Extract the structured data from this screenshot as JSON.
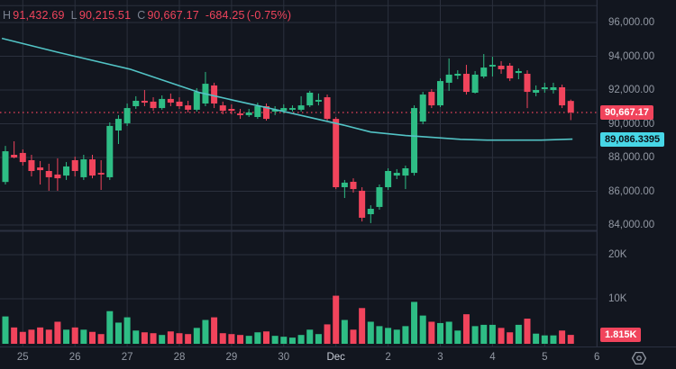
{
  "legend": {
    "h_label": "H",
    "h_value": "91,432.69",
    "l_label": "L",
    "l_value": "90,215.51",
    "c_label": "C",
    "c_value": "90,667.17",
    "change": "-684.25",
    "change_pct": "(-0.75%)"
  },
  "colors": {
    "up": "#2ebd85",
    "down": "#f1445c",
    "ma_line": "#52c3c5",
    "ma_badge_bg": "#47d6e6",
    "price_badge_bg": "#f1445c",
    "background": "#12161f",
    "grid": "#2b303d",
    "axis_text": "#9298a3",
    "legend_label": "#7b8291"
  },
  "price_axis": {
    "labels": [
      {
        "text": "96,000.00",
        "price": 96000
      },
      {
        "text": "94,000.00",
        "price": 94000
      },
      {
        "text": "92,000.00",
        "price": 92000
      },
      {
        "text": "90,000.00",
        "price": 90000
      },
      {
        "text": "88,000.00",
        "price": 88000
      },
      {
        "text": "86,000.00",
        "price": 86000
      },
      {
        "text": "84,000.00",
        "price": 84000
      }
    ],
    "last_price_badge": {
      "text": "90,667.17",
      "price": 90667.17
    },
    "ma_badge": {
      "text": "89,086.3395",
      "price": 89086.34
    }
  },
  "volume_axis": {
    "labels": [
      {
        "text": "20K",
        "value": 20000
      },
      {
        "text": "10K",
        "value": 10000
      }
    ],
    "badge": {
      "text": "1.815K",
      "value": 1815
    }
  },
  "time_axis": {
    "labels": [
      {
        "text": "25",
        "major": false
      },
      {
        "text": "26",
        "major": false
      },
      {
        "text": "27",
        "major": false
      },
      {
        "text": "28",
        "major": false
      },
      {
        "text": "29",
        "major": false
      },
      {
        "text": "30",
        "major": false
      },
      {
        "text": "Dec",
        "major": true
      },
      {
        "text": "2",
        "major": false
      },
      {
        "text": "3",
        "major": false
      },
      {
        "text": "4",
        "major": false
      },
      {
        "text": "5",
        "major": false
      },
      {
        "text": "6",
        "major": false
      }
    ]
  },
  "chart_data": {
    "type": "candlestick",
    "interval": "4h",
    "price_axis_range": [
      83500,
      97200
    ],
    "volume_axis_range": [
      0,
      26000
    ],
    "current_price": 90667.17,
    "ma_last_value": 89086.34,
    "price_gridlines": [
      97000,
      96000,
      94000,
      92000,
      90000,
      88000,
      86000,
      84000
    ],
    "volume_gridlines": [
      20000,
      10000
    ],
    "candles": [
      [
        86550,
        88690,
        86400,
        88370,
        6000
      ],
      [
        88160,
        88960,
        87950,
        88000,
        3500
      ],
      [
        88270,
        88480,
        87520,
        87730,
        2500
      ],
      [
        87840,
        88160,
        86880,
        87200,
        3000
      ],
      [
        87410,
        87790,
        86400,
        87250,
        3500
      ],
      [
        87200,
        87630,
        86030,
        86830,
        3000
      ],
      [
        86990,
        87950,
        86030,
        86770,
        4800
      ],
      [
        86930,
        87730,
        86670,
        87470,
        3000
      ],
      [
        87840,
        88050,
        86880,
        87200,
        3500
      ],
      [
        86830,
        88160,
        86670,
        87890,
        3000
      ],
      [
        87890,
        88160,
        86770,
        86930,
        2500
      ],
      [
        87090,
        87840,
        86080,
        86990,
        2000
      ],
      [
        86830,
        90080,
        86670,
        89870,
        7200
      ],
      [
        89600,
        90510,
        88800,
        90290,
        4600
      ],
      [
        90030,
        91200,
        89870,
        90930,
        5800
      ],
      [
        91040,
        91630,
        90880,
        91360,
        2800
      ],
      [
        91360,
        92000,
        91040,
        91250,
        2400
      ],
      [
        91310,
        91570,
        90770,
        90930,
        2200
      ],
      [
        90930,
        91680,
        90830,
        91470,
        1800
      ],
      [
        91470,
        91790,
        91040,
        91250,
        2600
      ],
      [
        91310,
        91570,
        90880,
        91040,
        2200
      ],
      [
        91090,
        91360,
        90670,
        90830,
        2000
      ],
      [
        90830,
        92110,
        90720,
        91890,
        3400
      ],
      [
        91200,
        93070,
        91040,
        92370,
        5200
      ],
      [
        92270,
        92430,
        90930,
        91200,
        5800
      ],
      [
        91090,
        91310,
        90560,
        90770,
        2200
      ],
      [
        90880,
        91150,
        90560,
        90770,
        2000
      ],
      [
        90610,
        90880,
        90290,
        90510,
        1800
      ],
      [
        90510,
        90880,
        90400,
        90670,
        1600
      ],
      [
        90400,
        91250,
        90290,
        91040,
        2400
      ],
      [
        91040,
        91200,
        90190,
        90290,
        2600
      ],
      [
        90720,
        91040,
        90510,
        90830,
        1600
      ],
      [
        90770,
        91150,
        90610,
        90930,
        1400
      ],
      [
        90830,
        91090,
        90720,
        90930,
        1200
      ],
      [
        90830,
        91630,
        90720,
        91090,
        1800
      ],
      [
        91090,
        91950,
        90990,
        91840,
        3000
      ],
      [
        91310,
        91790,
        91090,
        91410,
        2000
      ],
      [
        91570,
        91730,
        90190,
        90290,
        4200
      ],
      [
        90290,
        90400,
        86130,
        86240,
        10700
      ],
      [
        86240,
        86670,
        85600,
        86510,
        5200
      ],
      [
        86560,
        86770,
        85920,
        86130,
        3000
      ],
      [
        86030,
        86240,
        84210,
        84430,
        7900
      ],
      [
        84640,
        85170,
        84110,
        84960,
        4800
      ],
      [
        85070,
        86400,
        84910,
        86240,
        3800
      ],
      [
        86240,
        87360,
        86080,
        87200,
        3400
      ],
      [
        86930,
        87310,
        86720,
        87090,
        3000
      ],
      [
        86930,
        87520,
        86130,
        87360,
        3800
      ],
      [
        87090,
        91090,
        86930,
        90930,
        9300
      ],
      [
        90130,
        91890,
        89970,
        91730,
        6200
      ],
      [
        91890,
        92050,
        90930,
        91090,
        4800
      ],
      [
        91090,
        92690,
        90990,
        92530,
        4500
      ],
      [
        92430,
        93870,
        91950,
        92910,
        4800
      ],
      [
        92850,
        93170,
        92640,
        92960,
        2800
      ],
      [
        92960,
        93490,
        91730,
        91890,
        6500
      ],
      [
        91840,
        93120,
        91790,
        92910,
        3800
      ],
      [
        92800,
        94130,
        92690,
        93330,
        4100
      ],
      [
        93390,
        93970,
        92800,
        93490,
        4100
      ],
      [
        93440,
        93710,
        92960,
        93230,
        3400
      ],
      [
        93440,
        93600,
        92530,
        92690,
        2400
      ],
      [
        93010,
        93280,
        92640,
        93120,
        4100
      ],
      [
        92960,
        93170,
        90930,
        91890,
        5500
      ],
      [
        91840,
        92270,
        91630,
        92000,
        2100
      ],
      [
        92050,
        92430,
        91840,
        92160,
        1700
      ],
      [
        92000,
        92430,
        91790,
        92160,
        1700
      ],
      [
        92160,
        92320,
        90930,
        91090,
        2800
      ],
      [
        91351.42,
        91432.69,
        90215.51,
        90667.17,
        1815
      ]
    ],
    "ma": [
      [
        -0.4,
        95060
      ],
      [
        6,
        94240
      ],
      [
        14.3,
        93240
      ],
      [
        22.3,
        91850
      ],
      [
        26.4,
        91370
      ],
      [
        30.6,
        90890
      ],
      [
        34.7,
        90410
      ],
      [
        38.8,
        89930
      ],
      [
        42,
        89510
      ],
      [
        46,
        89300
      ],
      [
        49.2,
        89190
      ],
      [
        52.3,
        89080
      ],
      [
        55.4,
        89030
      ],
      [
        61.6,
        89030
      ],
      [
        65.2,
        89086.34
      ]
    ],
    "tick_first_candle": 2,
    "tick_step": 6
  }
}
